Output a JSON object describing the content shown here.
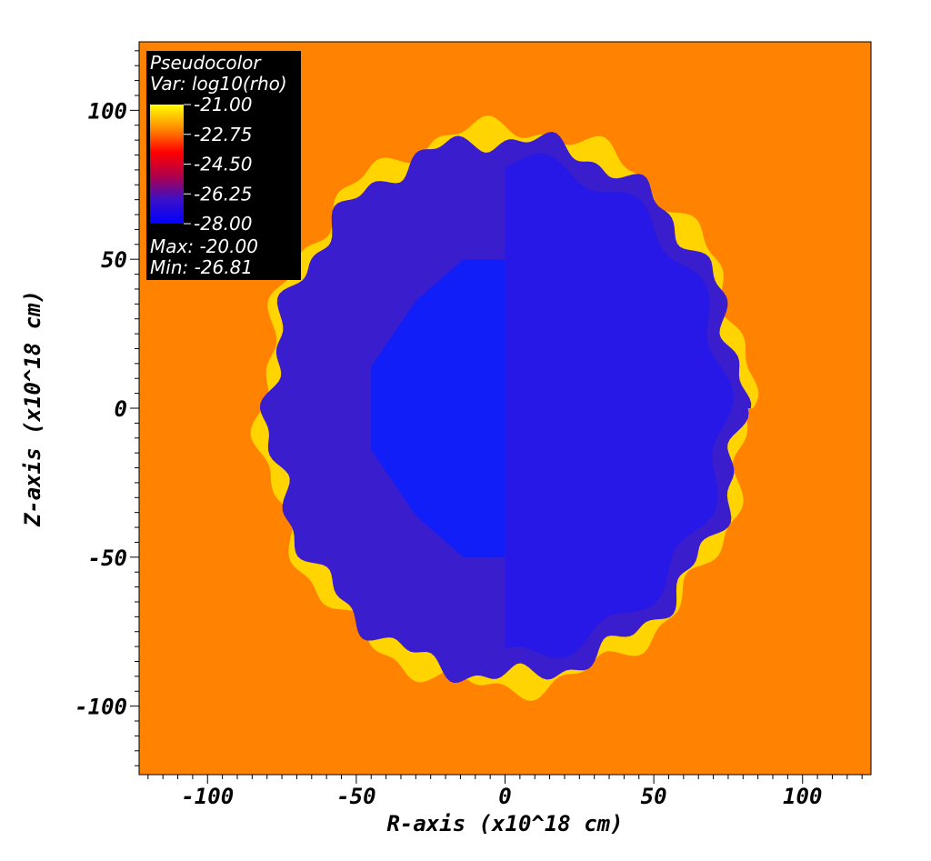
{
  "chart_data": {
    "type": "heatmap",
    "xlabel": "R-axis (x10^18 cm)",
    "ylabel": "Z-axis (x10^18 cm)",
    "xlim": [
      -123,
      123
    ],
    "ylim": [
      -123,
      123
    ],
    "x_ticks": [
      -100,
      -50,
      0,
      50,
      100
    ],
    "y_ticks": [
      100,
      50,
      0,
      -50,
      -100
    ],
    "x_tick_labels": [
      "-100",
      "-50",
      "0",
      "50",
      "100"
    ],
    "y_tick_labels": [
      "100",
      "50",
      "0",
      "-50",
      "-100"
    ],
    "grid": false,
    "background_color": "#ff8200",
    "shell_color": "#ffd400",
    "interior_color": "#3a1dcc",
    "core_color": "#0a1eff",
    "structure": {
      "outer_radius": 88,
      "top_z": 97,
      "bottom_z": -97,
      "inner_core_half_width_at_equator": 45,
      "inner_core_top_z": 50
    },
    "legend": {
      "placement": "top-left",
      "title": "Pseudocolor",
      "variable": "Var: log10(rho)",
      "colorbar_labels": [
        "-21.00",
        "-22.75",
        "-24.50",
        "-26.25",
        "-28.00"
      ],
      "colorbar_colors": [
        "#ffff00",
        "#ff8c00",
        "#ff0000",
        "#b0004a",
        "#3a10c8",
        "#0000ff"
      ],
      "max": "Max: -20.00",
      "min": "Min: -26.81"
    }
  }
}
